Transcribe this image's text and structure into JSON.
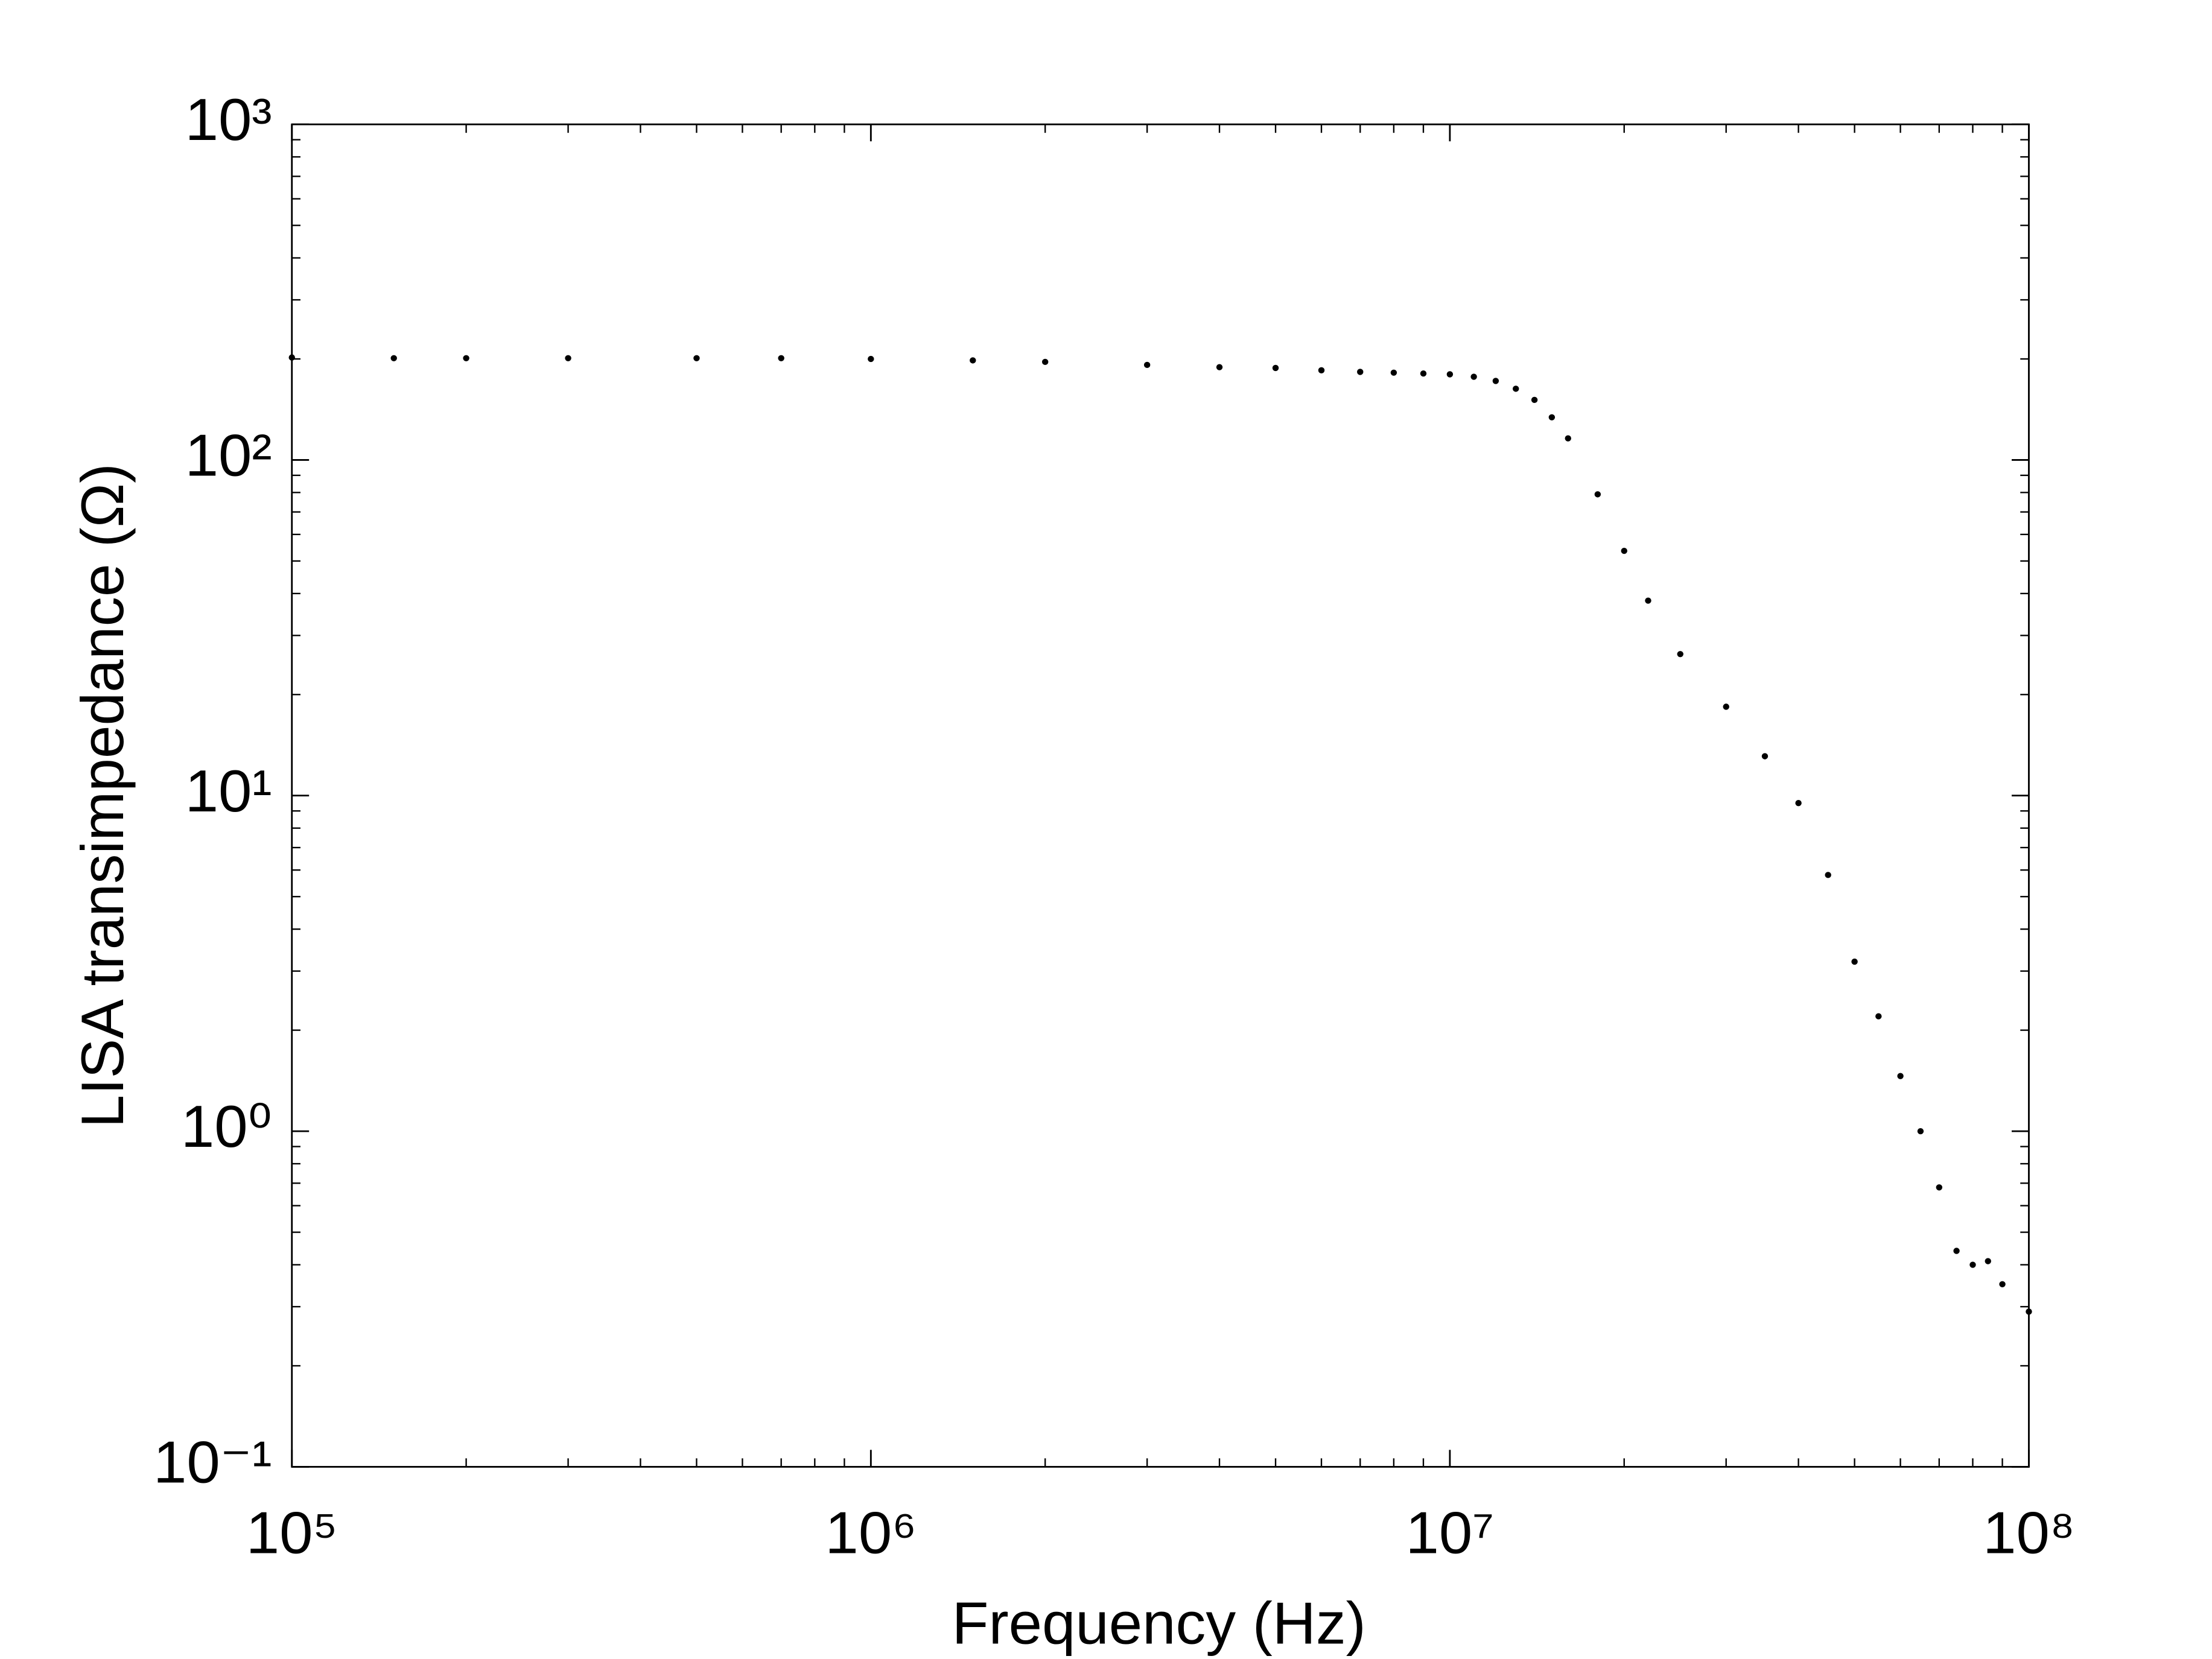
{
  "chart_data": {
    "type": "scatter",
    "xlabel": "Frequency (Hz)",
    "ylabel": "LISA transimpedance (Ω)",
    "xscale": "log",
    "yscale": "log",
    "xlim": [
      100000,
      100000000
    ],
    "ylim": [
      0.1,
      1000
    ],
    "xticks": [
      {
        "value": 100000,
        "label": "10⁵"
      },
      {
        "value": 1000000,
        "label": "10⁶"
      },
      {
        "value": 10000000,
        "label": "10⁷"
      },
      {
        "value": 100000000,
        "label": "10⁸"
      }
    ],
    "yticks": [
      {
        "value": 0.1,
        "label": "10⁻¹"
      },
      {
        "value": 1,
        "label": "10⁰"
      },
      {
        "value": 10,
        "label": "10¹"
      },
      {
        "value": 100,
        "label": "10²"
      },
      {
        "value": 1000,
        "label": "10³"
      }
    ],
    "color": "#000000",
    "x": [
      100000,
      150000,
      200000,
      300000,
      500000,
      700000,
      1000000,
      1500000,
      2000000,
      3000000,
      4000000,
      5000000,
      6000000,
      7000000,
      8000000,
      9000000,
      10000000,
      11000000,
      12000000,
      13000000,
      14000000,
      15000000,
      16000000,
      18000000,
      20000000,
      22000000,
      25000000,
      30000000,
      35000000,
      40000000,
      45000000,
      50000000,
      55000000,
      60000000,
      65000000,
      70000000,
      75000000,
      80000000,
      85000000,
      90000000,
      100000000
    ],
    "values": [
      202,
      201,
      201,
      201,
      201,
      201,
      200,
      198,
      196,
      192,
      189,
      188,
      185,
      183,
      182,
      181,
      180,
      177,
      172,
      163,
      151,
      134,
      116,
      79,
      53.6,
      38.1,
      26.4,
      18.4,
      13.1,
      9.5,
      5.8,
      3.2,
      2.2,
      1.46,
      1.0,
      0.68,
      0.44,
      0.4,
      0.41,
      0.35,
      0.29
    ]
  }
}
